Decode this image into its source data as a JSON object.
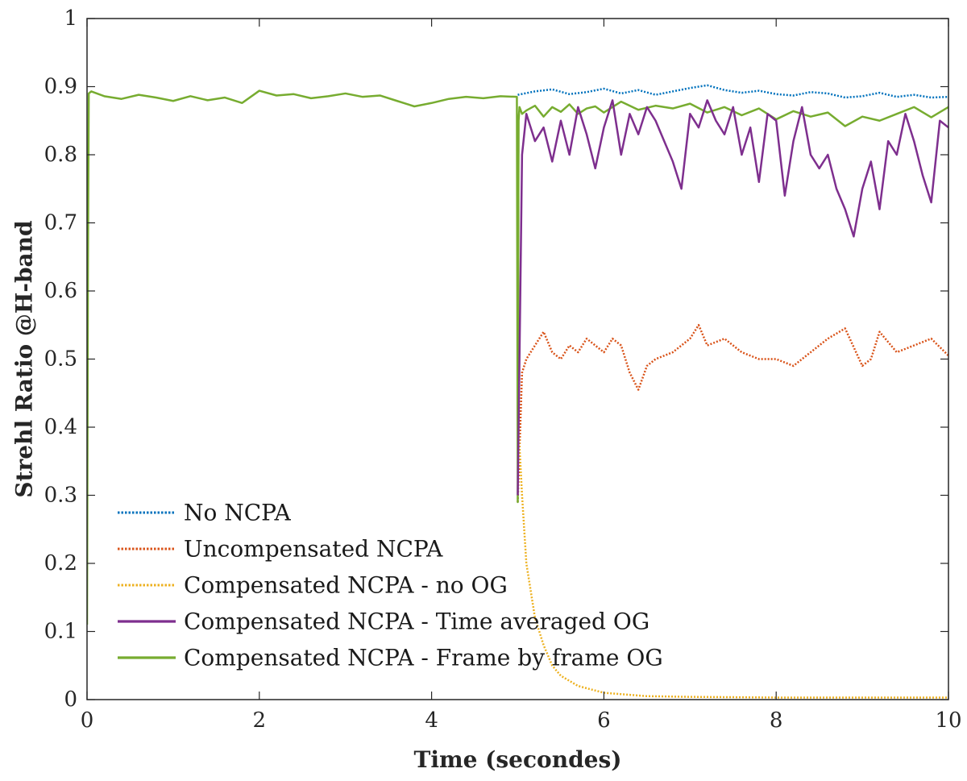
{
  "chart_data": {
    "type": "line",
    "title": "",
    "xlabel": "Time (secondes)",
    "ylabel": "Strehl Ratio @H-band",
    "xlim": [
      0,
      10
    ],
    "ylim": [
      0,
      1
    ],
    "x_ticks": [
      0,
      2,
      4,
      6,
      8,
      10
    ],
    "x_tick_labels": [
      "0",
      "2",
      "4",
      "6",
      "8",
      "10"
    ],
    "y_ticks": [
      0,
      0.1,
      0.2,
      0.3,
      0.4,
      0.5,
      0.6,
      0.7,
      0.8,
      0.9,
      1
    ],
    "y_tick_labels": [
      "0",
      "0.1",
      "0.2",
      "0.3",
      "0.4",
      "0.5",
      "0.6",
      "0.7",
      "0.8",
      "0.9",
      "1"
    ],
    "grid": false,
    "legend_position": "bottom-left",
    "series": [
      {
        "name": "No NCPA",
        "color": "#0072BD",
        "style": "dotted",
        "x": [
          5.0,
          5.2,
          5.4,
          5.6,
          5.8,
          6.0,
          6.2,
          6.4,
          6.6,
          6.8,
          7.0,
          7.2,
          7.4,
          7.6,
          7.8,
          8.0,
          8.2,
          8.4,
          8.6,
          8.8,
          9.0,
          9.2,
          9.4,
          9.6,
          9.8,
          10.0
        ],
        "y": [
          0.888,
          0.893,
          0.896,
          0.889,
          0.892,
          0.897,
          0.89,
          0.895,
          0.888,
          0.893,
          0.898,
          0.902,
          0.895,
          0.891,
          0.894,
          0.889,
          0.887,
          0.892,
          0.89,
          0.884,
          0.886,
          0.891,
          0.885,
          0.888,
          0.884,
          0.885
        ]
      },
      {
        "name": "Uncompensated NCPA",
        "color": "#D95319",
        "style": "dotted",
        "x": [
          5.0,
          5.05,
          5.1,
          5.2,
          5.3,
          5.4,
          5.5,
          5.6,
          5.7,
          5.8,
          5.9,
          6.0,
          6.1,
          6.2,
          6.3,
          6.4,
          6.5,
          6.6,
          6.8,
          7.0,
          7.1,
          7.2,
          7.4,
          7.6,
          7.8,
          8.0,
          8.2,
          8.4,
          8.6,
          8.8,
          9.0,
          9.1,
          9.2,
          9.4,
          9.6,
          9.8,
          10.0
        ],
        "y": [
          0.29,
          0.48,
          0.5,
          0.52,
          0.54,
          0.51,
          0.5,
          0.52,
          0.51,
          0.53,
          0.52,
          0.51,
          0.53,
          0.52,
          0.48,
          0.455,
          0.49,
          0.5,
          0.51,
          0.53,
          0.55,
          0.52,
          0.53,
          0.51,
          0.5,
          0.5,
          0.49,
          0.51,
          0.53,
          0.545,
          0.49,
          0.5,
          0.54,
          0.51,
          0.52,
          0.53,
          0.505
        ]
      },
      {
        "name": "Compensated NCPA - no OG",
        "color": "#EDB120",
        "style": "dotted",
        "x": [
          5.0,
          5.05,
          5.1,
          5.2,
          5.3,
          5.4,
          5.5,
          5.7,
          6.0,
          6.5,
          7.0,
          8.0,
          9.0,
          10.0
        ],
        "y": [
          0.42,
          0.3,
          0.2,
          0.12,
          0.08,
          0.05,
          0.035,
          0.02,
          0.01,
          0.005,
          0.004,
          0.003,
          0.003,
          0.003
        ]
      },
      {
        "name": "Compensated NCPA - Time averaged OG",
        "color": "#7E2F8E",
        "style": "solid",
        "x": [
          5.0,
          5.05,
          5.1,
          5.2,
          5.3,
          5.4,
          5.5,
          5.6,
          5.7,
          5.8,
          5.9,
          6.0,
          6.1,
          6.2,
          6.3,
          6.4,
          6.5,
          6.6,
          6.7,
          6.8,
          6.9,
          7.0,
          7.1,
          7.2,
          7.3,
          7.4,
          7.5,
          7.6,
          7.7,
          7.8,
          7.9,
          8.0,
          8.1,
          8.2,
          8.3,
          8.4,
          8.5,
          8.6,
          8.7,
          8.8,
          8.9,
          9.0,
          9.1,
          9.2,
          9.3,
          9.4,
          9.5,
          9.6,
          9.7,
          9.8,
          9.9,
          10.0
        ],
        "y": [
          0.3,
          0.8,
          0.86,
          0.82,
          0.84,
          0.79,
          0.85,
          0.8,
          0.87,
          0.83,
          0.78,
          0.84,
          0.88,
          0.8,
          0.86,
          0.83,
          0.87,
          0.85,
          0.82,
          0.79,
          0.75,
          0.86,
          0.84,
          0.88,
          0.85,
          0.83,
          0.87,
          0.8,
          0.84,
          0.76,
          0.86,
          0.85,
          0.74,
          0.82,
          0.87,
          0.8,
          0.78,
          0.8,
          0.75,
          0.72,
          0.68,
          0.75,
          0.79,
          0.72,
          0.82,
          0.8,
          0.86,
          0.82,
          0.77,
          0.73,
          0.85,
          0.84
        ]
      },
      {
        "name": "Compensated NCPA - Frame by frame OG",
        "color": "#77AC30",
        "style": "solid",
        "x": [
          0.0,
          0.01,
          0.02,
          0.05,
          0.2,
          0.4,
          0.6,
          0.8,
          1.0,
          1.2,
          1.4,
          1.6,
          1.8,
          2.0,
          2.2,
          2.4,
          2.6,
          2.8,
          3.0,
          3.2,
          3.4,
          3.6,
          3.8,
          4.0,
          4.2,
          4.4,
          4.6,
          4.8,
          4.99,
          5.0,
          5.01,
          5.02,
          5.05,
          5.1,
          5.2,
          5.3,
          5.4,
          5.5,
          5.6,
          5.7,
          5.8,
          5.9,
          6.0,
          6.2,
          6.4,
          6.6,
          6.8,
          7.0,
          7.2,
          7.4,
          7.6,
          7.8,
          8.0,
          8.2,
          8.4,
          8.6,
          8.8,
          9.0,
          9.2,
          9.4,
          9.6,
          9.8,
          10.0
        ],
        "y": [
          0.11,
          0.62,
          0.89,
          0.893,
          0.886,
          0.882,
          0.888,
          0.884,
          0.879,
          0.886,
          0.88,
          0.884,
          0.876,
          0.894,
          0.887,
          0.889,
          0.883,
          0.886,
          0.89,
          0.885,
          0.887,
          0.879,
          0.871,
          0.876,
          0.882,
          0.885,
          0.883,
          0.886,
          0.885,
          0.29,
          0.85,
          0.87,
          0.86,
          0.865,
          0.872,
          0.856,
          0.87,
          0.863,
          0.874,
          0.86,
          0.868,
          0.871,
          0.862,
          0.878,
          0.866,
          0.872,
          0.868,
          0.875,
          0.862,
          0.87,
          0.858,
          0.868,
          0.852,
          0.864,
          0.856,
          0.862,
          0.842,
          0.856,
          0.85,
          0.86,
          0.87,
          0.855,
          0.87
        ]
      }
    ]
  }
}
